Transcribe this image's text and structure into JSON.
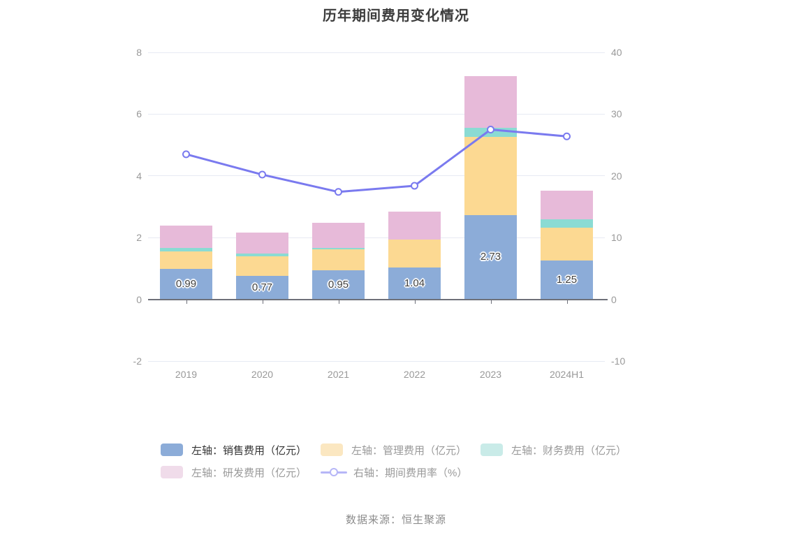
{
  "chart": {
    "title": "历年期间费用变化情况",
    "source": "数据来源：恒生聚源"
  },
  "chart_data": {
    "type": "bar",
    "subtype": "stacked-bar-with-line",
    "title": "历年期间费用变化情况",
    "categories": [
      "2019",
      "2020",
      "2021",
      "2022",
      "2023",
      "2024H1"
    ],
    "series": [
      {
        "name": "左轴：销售费用（亿元）",
        "type": "bar",
        "stack": true,
        "color": "#8CACD8",
        "values": [
          0.99,
          0.77,
          0.95,
          1.04,
          2.73,
          1.25
        ],
        "labels": [
          "0.99",
          "0.77",
          "0.95",
          "1.04",
          "2.73",
          "1.25"
        ]
      },
      {
        "name": "左轴：管理费用（亿元）",
        "type": "bar",
        "stack": true,
        "color": "#FCD992",
        "values": [
          0.57,
          0.62,
          0.67,
          0.89,
          2.54,
          1.06
        ]
      },
      {
        "name": "左轴：财务费用（亿元）",
        "type": "bar",
        "stack": true,
        "color": "#8BDBD3",
        "values": [
          0.1,
          0.1,
          0.05,
          0.0,
          0.29,
          0.29
        ]
      },
      {
        "name": "左轴：研发费用（亿元）",
        "type": "bar",
        "stack": true,
        "color": "#E7BAD9",
        "values": [
          0.72,
          0.68,
          0.8,
          0.92,
          1.67,
          0.93
        ]
      },
      {
        "name": "右轴：期间费用率（%）",
        "type": "line",
        "axis": "right",
        "color": "#7A7AEF",
        "values": [
          23.5,
          20.2,
          17.4,
          18.4,
          27.5,
          26.4
        ]
      }
    ],
    "left_axis": {
      "label": "",
      "min": -2,
      "max": 8,
      "ticks": [
        8,
        6,
        4,
        2,
        0,
        -2
      ]
    },
    "right_axis": {
      "label": "",
      "min": -10,
      "max": 40,
      "ticks": [
        40,
        30,
        20,
        10,
        0,
        -10
      ]
    },
    "grid": true,
    "legend_position": "bottom",
    "legend": {
      "rows": [
        [
          {
            "label": "左轴：销售费用（亿元）",
            "symbol": "rect",
            "color": "#8CACD8",
            "text_color": "#333333"
          },
          {
            "label": "左轴：管理费用（亿元）",
            "symbol": "rect",
            "color": "#FBE7C1",
            "text_color": "#999999"
          },
          {
            "label": "左轴：财务费用（亿元）",
            "symbol": "rect",
            "color": "#C9EBE8",
            "text_color": "#999999"
          }
        ],
        [
          {
            "label": "左轴：研发费用（亿元）",
            "symbol": "line",
            "color": "#F0DCEA",
            "text_color": "#999999"
          },
          {
            "label": "右轴：期间费用率（%）",
            "symbol": "line-marker",
            "color": "#B6B6F7",
            "text_color": "#999999"
          }
        ]
      ]
    },
    "style": {
      "gridline_color": "#e7eaf3",
      "zero_axis_color": "#6e7079",
      "axis_label_color": "#999999",
      "bar_value_label_color": "#404040",
      "title_color": "#3c3c3c",
      "source_color": "#8c8c8c"
    }
  }
}
